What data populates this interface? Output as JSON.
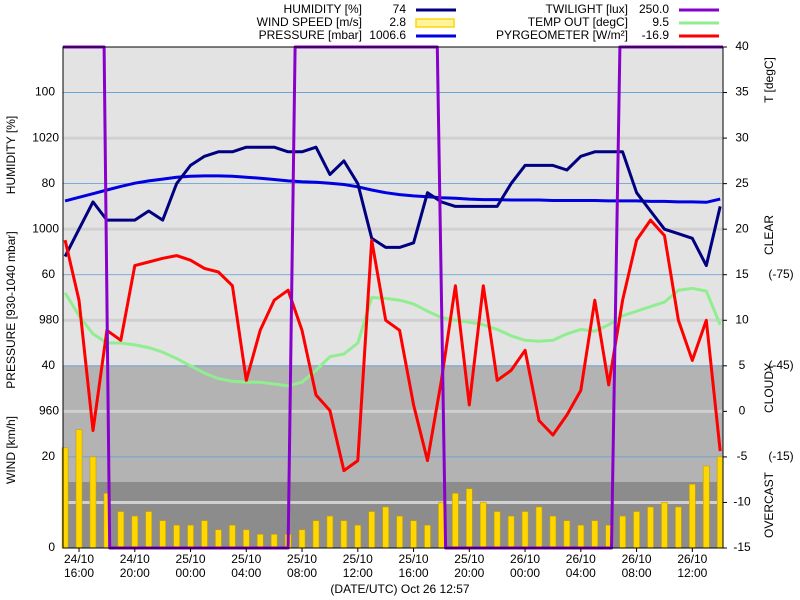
{
  "chart_data": {
    "type": "line",
    "xlabel": "(DATE/UTC) Oct 26 12:57",
    "ylabels": [
      "HUMIDITY [%]",
      "PRESSURE [930-1040 mbar]",
      "WIND [km/h]"
    ],
    "y2label": "T [degC]",
    "sky_labels": [
      "CLEAR",
      "CLOUDY",
      "OVERCAST"
    ],
    "x": [
      15,
      16,
      17,
      18,
      19,
      20,
      21,
      22,
      23,
      24,
      25,
      26,
      27,
      28,
      29,
      30,
      31,
      32,
      33,
      34,
      35,
      36,
      37,
      38,
      39,
      40,
      41,
      42,
      43,
      44,
      45,
      46,
      47,
      48,
      49,
      50,
      51,
      52,
      53,
      54,
      55,
      56,
      57,
      58,
      59,
      60,
      61,
      62
    ],
    "xlim": [
      14.85,
      62.2
    ],
    "xticks": [
      {
        "value": 16,
        "label": [
          "24/10",
          "16:00"
        ]
      },
      {
        "value": 20,
        "label": [
          "24/10",
          "20:00"
        ]
      },
      {
        "value": 24,
        "label": [
          "25/10",
          "00:00"
        ]
      },
      {
        "value": 28,
        "label": [
          "25/10",
          "04:00"
        ]
      },
      {
        "value": 32,
        "label": [
          "25/10",
          "08:00"
        ]
      },
      {
        "value": 36,
        "label": [
          "25/10",
          "12:00"
        ]
      },
      {
        "value": 40,
        "label": [
          "25/10",
          "16:00"
        ]
      },
      {
        "value": 44,
        "label": [
          "25/10",
          "20:00"
        ]
      },
      {
        "value": 48,
        "label": [
          "26/10",
          "00:00"
        ]
      },
      {
        "value": 52,
        "label": [
          "26/10",
          "04:00"
        ]
      },
      {
        "value": 56,
        "label": [
          "26/10",
          "08:00"
        ]
      },
      {
        "value": 60,
        "label": [
          "26/10",
          "12:00"
        ]
      }
    ],
    "ylim": [
      0,
      110
    ],
    "yticks": [
      0,
      20,
      40,
      60,
      80,
      100
    ],
    "y2lim": [
      -15,
      40
    ],
    "y2ticks": [
      -15,
      -10,
      -5,
      0,
      5,
      10,
      15,
      20,
      25,
      30,
      35,
      40
    ],
    "y3lim": [
      930,
      1040
    ],
    "y3ticks": [
      {
        "value": 940,
        "label": null
      },
      960,
      980,
      1000,
      1020
    ],
    "y4lim": [
      15,
      -150
    ],
    "y4ticks": [
      {
        "value": -75,
        "label": "(-75)"
      },
      {
        "value": -45,
        "label": "(-45)"
      },
      {
        "value": -15,
        "label": "(-15)"
      }
    ],
    "y5lim": [
      0,
      250
    ],
    "series": [
      {
        "name": "HUMIDITY [%]",
        "latest": "74",
        "color": "#000080",
        "axis": "y",
        "kind": "line",
        "values": [
          64,
          70,
          76,
          72,
          72,
          72,
          74,
          72,
          80,
          84,
          86,
          87,
          87,
          88,
          88,
          88,
          87,
          87,
          88,
          82,
          85,
          80,
          68,
          66,
          66,
          67,
          78,
          76,
          75,
          75,
          75,
          75,
          80,
          84,
          84,
          84,
          83,
          86,
          87,
          87,
          87,
          78,
          74,
          70,
          69,
          68,
          62,
          75
        ]
      },
      {
        "name": "WIND SPEED [m/s]",
        "latest": "2.8",
        "color": "#ffd700",
        "axis": "y",
        "kind": "bar",
        "values": [
          22,
          26,
          20,
          12,
          8,
          7,
          8,
          6,
          5,
          5,
          6,
          4,
          5,
          4,
          3,
          3,
          3,
          4,
          6,
          7,
          6,
          5,
          8,
          9,
          7,
          6,
          5,
          10,
          12,
          13,
          10,
          8,
          7,
          8,
          9,
          7,
          6,
          5,
          6,
          5,
          7,
          8,
          9,
          10,
          9,
          14,
          18,
          20
        ]
      },
      {
        "name": "PRESSURE [mbar]",
        "latest": "1006.6",
        "color": "#0000e0",
        "axis": "y3",
        "kind": "line",
        "values": [
          1006.2,
          1007,
          1007.8,
          1008.6,
          1009.4,
          1010.1,
          1010.6,
          1011,
          1011.4,
          1011.6,
          1011.7,
          1011.7,
          1011.6,
          1011.4,
          1011.2,
          1010.9,
          1010.6,
          1010.4,
          1010.3,
          1010.1,
          1009.8,
          1009.3,
          1008.6,
          1008,
          1007.6,
          1007.3,
          1007.1,
          1006.9,
          1006.8,
          1006.6,
          1006.5,
          1006.5,
          1006.4,
          1006.4,
          1006.4,
          1006.3,
          1006.3,
          1006.3,
          1006.3,
          1006.2,
          1006.2,
          1006.2,
          1006.1,
          1006.1,
          1006,
          1006,
          1005.9,
          1006.6
        ]
      },
      {
        "name": "TWILIGHT [lux]",
        "latest": "250.0",
        "color": "#8800cc",
        "axis": "y5",
        "kind": "line",
        "x": [
          14.85,
          17.8,
          18.2,
          31.0,
          31.5,
          41.7,
          42.3,
          54.2,
          54.8,
          62.2
        ],
        "values": [
          250,
          250,
          0,
          0,
          250,
          250,
          0,
          0,
          250,
          250
        ]
      },
      {
        "name": "TEMP OUT [degC]",
        "latest": "9.5",
        "color": "#90ee90",
        "axis": "y2",
        "kind": "line",
        "values": [
          13,
          10.5,
          8.5,
          7.5,
          7.5,
          7.3,
          7,
          6.5,
          5.8,
          5,
          4.2,
          3.6,
          3.3,
          3.2,
          3.2,
          3,
          2.8,
          3.2,
          4.5,
          6,
          6.3,
          7.5,
          12.5,
          12.4,
          12.2,
          11.8,
          11,
          10.3,
          10,
          9.8,
          9.5,
          9,
          8.3,
          7.8,
          7.7,
          7.8,
          8.5,
          9,
          8.8,
          9.5,
          10.5,
          11,
          11.5,
          12,
          13.3,
          13.5,
          13.2,
          9.5
        ]
      },
      {
        "name": "PYRGEOMETER [W/m²]",
        "latest": "-16.9",
        "color": "#ff0000",
        "axis": "y4",
        "kind": "line",
        "values": [
          -86.4,
          -66.6,
          -23.7,
          -56.7,
          -53.4,
          -78,
          -79.2,
          -80.4,
          -81.3,
          -79.8,
          -77.1,
          -75.9,
          -71.4,
          -40.2,
          -56.7,
          -66.6,
          -69.9,
          -56.7,
          -35.4,
          -30.3,
          -10.5,
          -13.8,
          -86.4,
          -60,
          -56.7,
          -32.1,
          -13.8,
          -40.2,
          -71.4,
          -32.1,
          -71.4,
          -40.2,
          -43.5,
          -50.1,
          -27,
          -22.2,
          -28.8,
          -36.9,
          -66.6,
          -38.7,
          -66.6,
          -86.4,
          -93,
          -87.9,
          -60,
          -46.8,
          -60,
          -16.9
        ]
      }
    ]
  }
}
